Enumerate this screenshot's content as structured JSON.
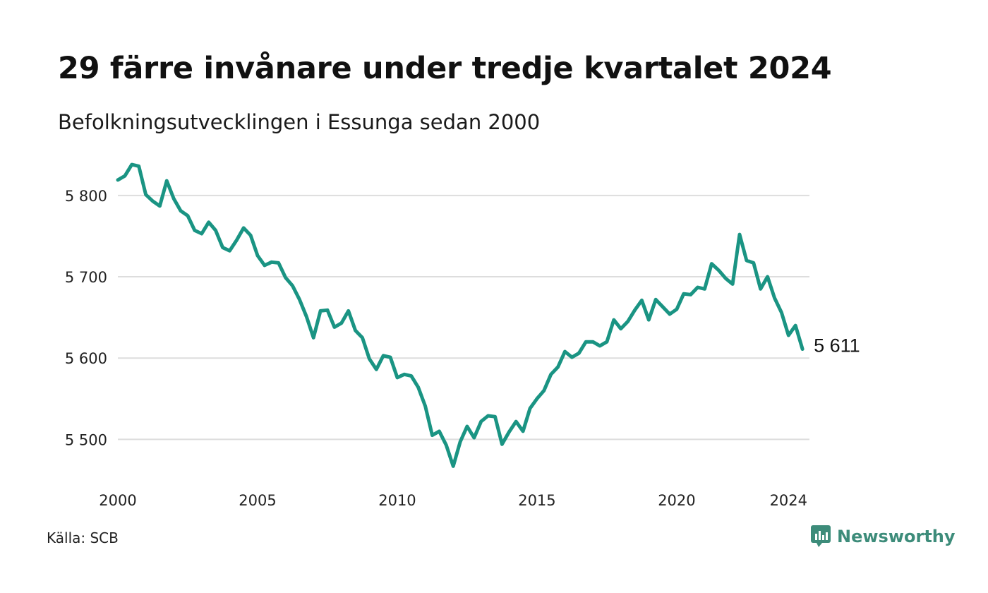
{
  "header": {
    "title": "29 färre invånare under tredje kvartalet 2024",
    "subtitle": "Befolkningsutvecklingen i Essunga sedan 2000"
  },
  "footer": {
    "source": "Källa: SCB",
    "brand": "Newsworthy",
    "brand_icon": "newsworthy-logo-icon"
  },
  "colors": {
    "line": "#1a9483",
    "grid": "#dddddd",
    "brand": "#3d8c7a"
  },
  "chart_data": {
    "type": "line",
    "title": "29 färre invånare under tredje kvartalet 2024",
    "subtitle": "Befolkningsutvecklingen i Essunga sedan 2000",
    "xlabel": "",
    "ylabel": "",
    "x_ticks": [
      2000,
      2005,
      2010,
      2015,
      2020,
      2024
    ],
    "y_ticks": [
      5500,
      5600,
      5700,
      5800
    ],
    "y_tick_labels": [
      "5 500",
      "5 600",
      "5 700",
      "5 800"
    ],
    "x_tick_labels": [
      "2000",
      "2005",
      "2010",
      "2015",
      "2020",
      "2024"
    ],
    "xlim": [
      2000,
      2024.75
    ],
    "ylim": [
      5450,
      5845
    ],
    "grid": "horizontal",
    "end_label": "5 611",
    "series": [
      {
        "x_start": 2000.0,
        "x_step": 0.25,
        "values": [
          5819,
          5824,
          5838,
          5836,
          5801,
          5793,
          5787,
          5818,
          5796,
          5781,
          5775,
          5757,
          5753,
          5767,
          5757,
          5736,
          5732,
          5745,
          5760,
          5751,
          5726,
          5714,
          5718,
          5717,
          5699,
          5689,
          5672,
          5651,
          5625,
          5658,
          5659,
          5638,
          5643,
          5658,
          5634,
          5625,
          5599,
          5586,
          5603,
          5601,
          5576,
          5580,
          5578,
          5564,
          5541,
          5505,
          5510,
          5493,
          5467,
          5497,
          5516,
          5502,
          5522,
          5529,
          5528,
          5494,
          5509,
          5522,
          5510,
          5538,
          5550,
          5560,
          5580,
          5589,
          5608,
          5601,
          5606,
          5620,
          5620,
          5615,
          5620,
          5647,
          5636,
          5645,
          5659,
          5671,
          5647,
          5672,
          5663,
          5654,
          5660,
          5679,
          5678,
          5687,
          5685,
          5716,
          5708,
          5698,
          5691,
          5752,
          5720,
          5717,
          5685,
          5700,
          5674,
          5656,
          5628,
          5640,
          5611
        ]
      }
    ]
  }
}
